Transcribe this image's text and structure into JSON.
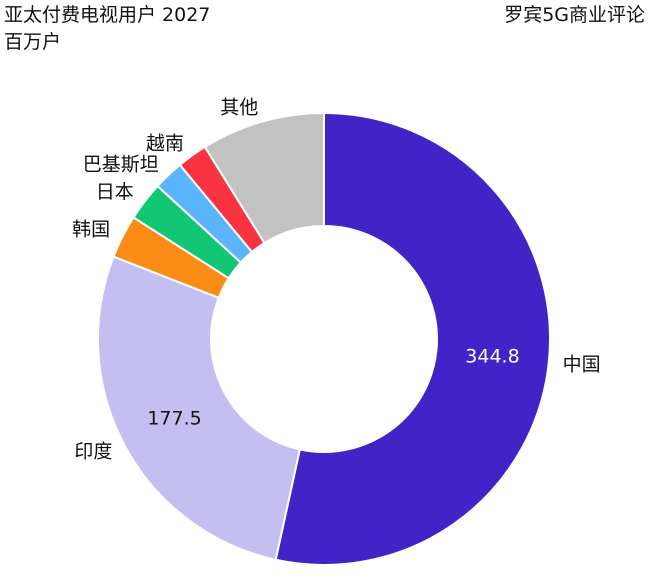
{
  "header": {
    "title": "亚太付费电视用户 2027",
    "subtitle": "百万户",
    "source": "罗宾5G商业评论"
  },
  "chart_data": {
    "type": "pie",
    "donut": true,
    "title": "亚太付费电视用户 2027",
    "subtitle": "百万户",
    "legend": "none",
    "slices": [
      {
        "label": "中国",
        "value": 344.8,
        "color": "#4123C8",
        "value_label": "344.8",
        "value_color": "#ffffff"
      },
      {
        "label": "印度",
        "value": 177.5,
        "color": "#C5BEF1",
        "value_label": "177.5",
        "value_color": "#111111"
      },
      {
        "label": "韩国",
        "value": 20,
        "color": "#FA8C16",
        "value_label": ""
      },
      {
        "label": "日本",
        "value": 18,
        "color": "#12C774",
        "value_label": ""
      },
      {
        "label": "巴基斯坦",
        "value": 14,
        "color": "#5BB5FA",
        "value_label": ""
      },
      {
        "label": "越南",
        "value": 14,
        "color": "#FA3343",
        "value_label": ""
      },
      {
        "label": "其他",
        "value": 57,
        "color": "#C2C2C2",
        "value_label": ""
      }
    ]
  }
}
